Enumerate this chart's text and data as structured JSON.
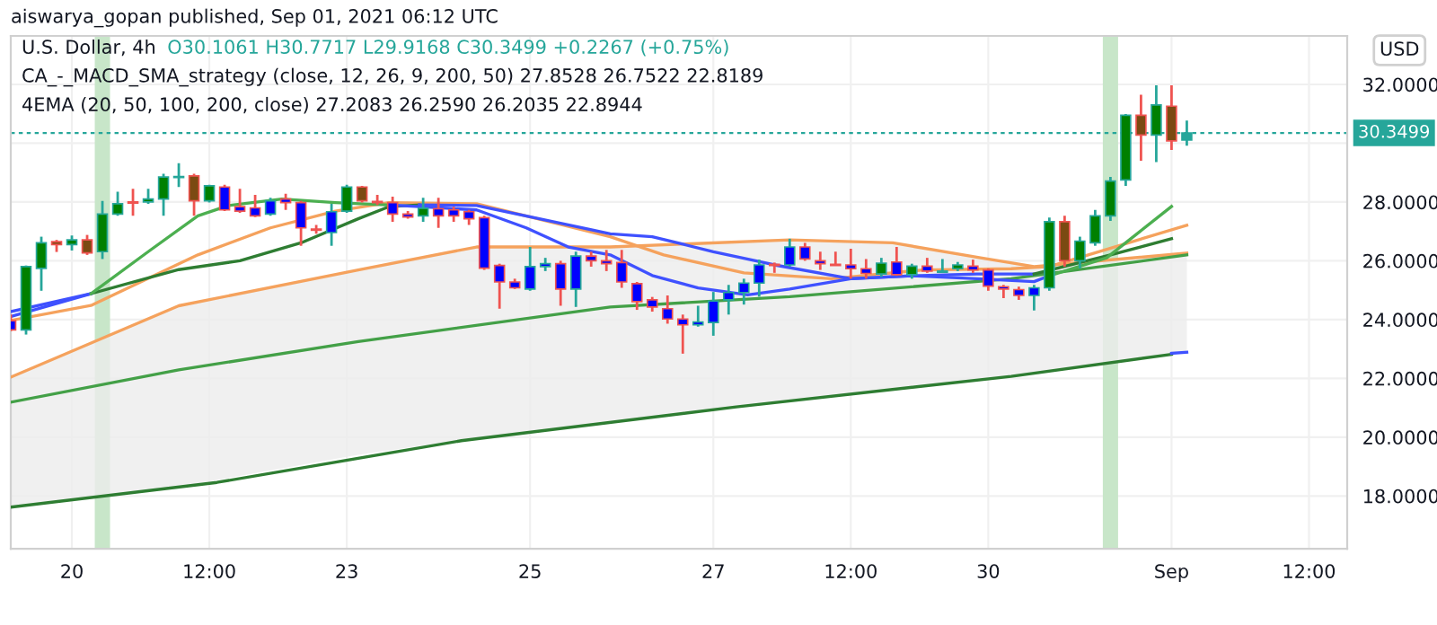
{
  "chart_data": {
    "type": "candlestick",
    "subtitle": "aiswarya_gopan published, Sep 01, 2021 06:12 UTC",
    "title": "U.S. Dollar, 4h",
    "annotations": [
      "O30.1061 H30.7717 L29.9168 C30.3499 +0.2267 (+0.75%)",
      "CA_-_MACD_SMA_strategy (close, 12, 26, 9, 200, 50) 27.8528 26.7522 22.8189",
      "4EMA (20, 50, 100, 200, close) 27.2083 26.2590 26.2035 22.8944"
    ],
    "ylabel": "USD",
    "x": [
      "2021-08-19T08:00",
      "2021-08-19T12:00",
      "2021-08-19T16:00",
      "2021-08-19T20:00",
      "2021-08-20T00:00",
      "2021-08-20T04:00",
      "2021-08-20T08:00",
      "2021-08-20T12:00",
      "2021-08-20T16:00",
      "2021-08-20T20:00",
      "2021-08-21T00:00",
      "2021-08-21T04:00",
      "2021-08-21T08:00",
      "2021-08-21T12:00",
      "2021-08-21T16:00",
      "2021-08-21T20:00",
      "2021-08-22T00:00",
      "2021-08-22T04:00",
      "2021-08-22T08:00",
      "2021-08-22T12:00",
      "2021-08-22T16:00",
      "2021-08-22T20:00",
      "2021-08-23T00:00",
      "2021-08-23T04:00",
      "2021-08-23T08:00",
      "2021-08-23T12:00",
      "2021-08-23T16:00",
      "2021-08-23T20:00",
      "2021-08-24T00:00",
      "2021-08-24T04:00",
      "2021-08-24T08:00",
      "2021-08-24T12:00",
      "2021-08-24T16:00",
      "2021-08-24T20:00",
      "2021-08-25T00:00",
      "2021-08-25T04:00",
      "2021-08-25T08:00",
      "2021-08-25T12:00",
      "2021-08-25T16:00",
      "2021-08-25T20:00",
      "2021-08-26T00:00",
      "2021-08-26T04:00",
      "2021-08-26T08:00",
      "2021-08-26T12:00",
      "2021-08-26T16:00",
      "2021-08-26T20:00",
      "2021-08-27T00:00",
      "2021-08-27T04:00",
      "2021-08-27T08:00",
      "2021-08-27T12:00",
      "2021-08-27T16:00",
      "2021-08-27T20:00",
      "2021-08-28T00:00",
      "2021-08-28T04:00",
      "2021-08-28T08:00",
      "2021-08-28T12:00",
      "2021-08-28T16:00",
      "2021-08-28T20:00",
      "2021-08-29T00:00",
      "2021-08-29T04:00",
      "2021-08-29T08:00",
      "2021-08-29T12:00",
      "2021-08-29T16:00",
      "2021-08-29T20:00",
      "2021-08-30T00:00",
      "2021-08-30T04:00",
      "2021-08-30T08:00",
      "2021-08-30T12:00",
      "2021-08-30T16:00",
      "2021-08-30T20:00",
      "2021-08-31T00:00",
      "2021-08-31T04:00",
      "2021-08-31T08:00",
      "2021-08-31T12:00",
      "2021-08-31T16:00",
      "2021-08-31T20:00",
      "2021-09-01T00:00",
      "2021-09-01T04:00"
    ],
    "ohlc": [
      [
        23.96,
        24.17,
        23.61,
        23.65
      ],
      [
        23.65,
        25.84,
        23.49,
        25.8
      ],
      [
        25.74,
        26.82,
        24.98,
        26.61
      ],
      [
        26.65,
        26.71,
        26.3,
        26.55
      ],
      [
        26.55,
        26.86,
        26.35,
        26.71
      ],
      [
        26.71,
        26.88,
        26.2,
        26.27
      ],
      [
        26.31,
        28.04,
        26.06,
        27.59
      ],
      [
        27.59,
        28.35,
        27.53,
        27.94
      ],
      [
        28.0,
        28.45,
        27.53,
        27.96
      ],
      [
        28.0,
        28.45,
        27.94,
        28.1
      ],
      [
        28.1,
        28.96,
        27.53,
        28.85
      ],
      [
        28.83,
        29.32,
        28.51,
        28.87
      ],
      [
        28.89,
        28.96,
        27.53,
        28.04
      ],
      [
        28.04,
        28.59,
        27.98,
        28.55
      ],
      [
        28.51,
        28.59,
        27.69,
        27.73
      ],
      [
        27.84,
        28.45,
        27.63,
        27.69
      ],
      [
        27.8,
        28.24,
        27.49,
        27.53
      ],
      [
        27.59,
        28.14,
        27.53,
        28.04
      ],
      [
        28.1,
        28.28,
        27.73,
        27.98
      ],
      [
        27.98,
        28.04,
        26.51,
        27.12
      ],
      [
        27.08,
        27.22,
        26.92,
        27.04
      ],
      [
        26.96,
        27.94,
        26.51,
        27.67
      ],
      [
        27.69,
        28.59,
        27.63,
        28.51
      ],
      [
        28.51,
        28.55,
        27.98,
        28.04
      ],
      [
        28.02,
        28.24,
        27.9,
        27.98
      ],
      [
        27.98,
        28.18,
        27.33,
        27.59
      ],
      [
        27.59,
        27.69,
        27.43,
        27.49
      ],
      [
        27.53,
        28.14,
        27.33,
        27.79
      ],
      [
        27.77,
        28.14,
        27.12,
        27.53
      ],
      [
        27.73,
        27.84,
        27.33,
        27.53
      ],
      [
        27.67,
        27.73,
        27.22,
        27.43
      ],
      [
        27.47,
        27.53,
        25.69,
        25.75
      ],
      [
        25.84,
        25.9,
        24.37,
        25.28
      ],
      [
        25.28,
        25.39,
        25.04,
        25.08
      ],
      [
        25.04,
        26.47,
        24.98,
        25.8
      ],
      [
        25.8,
        26.1,
        25.65,
        25.9
      ],
      [
        25.9,
        26.0,
        24.47,
        25.04
      ],
      [
        25.04,
        26.31,
        24.43,
        26.16
      ],
      [
        26.16,
        26.31,
        25.8,
        26.0
      ],
      [
        26.0,
        26.37,
        25.65,
        25.9
      ],
      [
        25.94,
        26.37,
        25.08,
        25.28
      ],
      [
        25.22,
        25.28,
        24.33,
        24.61
      ],
      [
        24.67,
        24.77,
        24.27,
        24.43
      ],
      [
        24.37,
        24.82,
        23.86,
        24.02
      ],
      [
        24.02,
        24.17,
        22.84,
        23.82
      ],
      [
        23.82,
        24.47,
        23.76,
        23.92
      ],
      [
        23.9,
        24.94,
        23.45,
        24.63
      ],
      [
        24.67,
        25.18,
        24.17,
        24.92
      ],
      [
        24.92,
        25.39,
        24.51,
        25.24
      ],
      [
        25.24,
        26.04,
        24.78,
        25.86
      ],
      [
        25.88,
        25.94,
        25.59,
        25.84
      ],
      [
        25.86,
        26.75,
        25.8,
        26.47
      ],
      [
        26.47,
        26.61,
        26.0,
        26.06
      ],
      [
        26.0,
        26.31,
        25.69,
        25.9
      ],
      [
        25.88,
        26.31,
        25.84,
        25.84
      ],
      [
        25.86,
        26.41,
        25.39,
        25.73
      ],
      [
        25.73,
        26.06,
        25.39,
        25.57
      ],
      [
        25.55,
        26.1,
        25.45,
        25.92
      ],
      [
        25.96,
        26.47,
        25.49,
        25.53
      ],
      [
        25.53,
        25.9,
        25.39,
        25.82
      ],
      [
        25.82,
        26.1,
        25.59,
        25.65
      ],
      [
        25.61,
        26.06,
        25.59,
        25.65
      ],
      [
        25.73,
        25.96,
        25.65,
        25.86
      ],
      [
        25.82,
        26.04,
        25.59,
        25.69
      ],
      [
        25.69,
        25.74,
        24.98,
        25.14
      ],
      [
        25.12,
        25.18,
        24.73,
        25.04
      ],
      [
        25.02,
        25.12,
        24.67,
        24.82
      ],
      [
        24.82,
        25.18,
        24.31,
        25.08
      ],
      [
        25.08,
        27.47,
        24.98,
        27.33
      ],
      [
        27.33,
        27.53,
        25.8,
        26.0
      ],
      [
        26.0,
        26.82,
        25.74,
        26.67
      ],
      [
        26.61,
        27.73,
        26.51,
        27.53
      ],
      [
        27.53,
        28.85,
        27.36,
        28.71
      ],
      [
        28.75,
        30.99,
        28.55,
        30.95
      ],
      [
        30.95,
        31.65,
        29.4,
        30.28
      ],
      [
        30.28,
        31.97,
        29.36,
        31.3
      ],
      [
        31.26,
        31.97,
        29.77,
        30.08
      ],
      [
        30.1061,
        30.7717,
        29.9168,
        30.3499
      ]
    ],
    "colors": [
      "#0000ff",
      "#008000",
      "#008000",
      "#7b4a12",
      "#008000",
      "#7b4a12",
      "#008000",
      "#008000",
      "#7b4a12",
      "#008000",
      "#008000",
      "#008000",
      "#7b4a12",
      "#008000",
      "#0000ff",
      "#0000ff",
      "#0000ff",
      "#0000ff",
      "#0000ff",
      "#0000ff",
      "#0000ff",
      "#0000ff",
      "#008000",
      "#7b4a12",
      "#7b4a12",
      "#0000ff",
      "#0000ff",
      "#008000",
      "#0000ff",
      "#0000ff",
      "#0000ff",
      "#0000ff",
      "#0000ff",
      "#0000ff",
      "#0000ff",
      "#0000ff",
      "#0000ff",
      "#0000ff",
      "#0000ff",
      "#0000ff",
      "#0000ff",
      "#0000ff",
      "#0000ff",
      "#0000ff",
      "#0000ff",
      "#0000ff",
      "#0000ff",
      "#0000ff",
      "#0000ff",
      "#0000ff",
      "#7b4a12",
      "#0000ff",
      "#0000ff",
      "#0000ff",
      "#0000ff",
      "#0000ff",
      "#0000ff",
      "#008000",
      "#0000ff",
      "#008000",
      "#0000ff",
      "#0000ff",
      "#008000",
      "#0000ff",
      "#0000ff",
      "#0000ff",
      "#0000ff",
      "#0000ff",
      "#008000",
      "#7b4a12",
      "#008000",
      "#008000",
      "#008000",
      "#008000",
      "#7b4a12",
      "#008000",
      "#7b4a12",
      "#26a69a"
    ],
    "series": [
      {
        "type": "line",
        "color": "#2e7d32",
        "x": [
          "2021-08-19T08:00",
          "2021-08-21T14:00",
          "2021-08-24T06:00",
          "2021-08-27T06:00",
          "2021-08-30T06:00",
          "2021-09-01T00:00"
        ],
        "values": [
          17.62,
          18.46,
          19.88,
          21.03,
          22.07,
          22.82
        ]
      },
      {
        "type": "line",
        "color": "#3f51ff",
        "x": [
          "2021-09-01T00:00",
          "2021-09-01T04:00"
        ],
        "values": [
          22.85,
          22.89
        ]
      },
      {
        "type": "line",
        "color": "#f5a25d",
        "x": [
          "2021-08-19T08:00",
          "2021-08-21T04:00",
          "2021-08-23T03:00",
          "2021-08-24T10:00",
          "2021-08-25T21:00",
          "2021-08-27T20:00",
          "2021-08-28T23:00",
          "2021-08-29T22:00",
          "2021-08-30T12:00",
          "2021-09-01T04:00"
        ],
        "values": [
          22.04,
          24.47,
          25.69,
          26.47,
          26.47,
          26.71,
          26.61,
          26.1,
          25.8,
          26.26
        ],
        "lower": [
          17.62,
          18.31,
          19.4,
          19.98,
          20.48,
          21.24,
          21.63,
          21.95,
          22.17,
          22.89
        ],
        "upper": [
          22.04,
          24.47,
          25.69,
          26.47,
          26.47,
          26.71,
          26.61,
          26.1,
          25.8,
          26.26
        ]
      },
      {
        "type": "line",
        "color": "#43a047",
        "x": [
          "2021-08-19T08:00",
          "2021-08-21T04:00",
          "2021-08-23T03:00",
          "2021-08-25T21:00",
          "2021-08-27T20:00",
          "2021-08-30T06:00",
          "2021-09-01T04:00"
        ],
        "values": [
          21.19,
          22.29,
          23.25,
          24.43,
          24.78,
          25.39,
          26.2
        ]
      },
      {
        "type": "line",
        "color": "#f5a25d",
        "x": [
          "2021-08-19T08:00",
          "2021-08-20T05:00",
          "2021-08-21T09:00",
          "2021-08-22T04:00",
          "2021-08-22T21:00",
          "2021-08-23T11:00",
          "2021-08-24T10:00",
          "2021-08-25T21:00",
          "2021-08-26T11:00",
          "2021-08-27T08:00",
          "2021-08-28T07:00",
          "2021-08-29T07:00",
          "2021-08-30T06:00",
          "2021-08-30T16:00",
          "2021-09-01T04:00"
        ],
        "values": [
          23.97,
          24.48,
          26.2,
          27.12,
          27.69,
          27.98,
          27.94,
          26.82,
          26.2,
          25.59,
          25.39,
          25.69,
          25.73,
          25.8,
          27.21
        ]
      },
      {
        "type": "line",
        "color": "#3f51ff",
        "x": [
          "2021-08-19T08:00",
          "2021-08-20T05:00"
        ],
        "values": [
          24.27,
          24.88
        ]
      },
      {
        "type": "line",
        "color": "#2e7d32",
        "x": [
          "2021-08-20T05:00",
          "2021-08-21T04:00",
          "2021-08-21T20:00",
          "2021-08-22T12:00",
          "2021-08-23T03:00",
          "2021-08-23T11:00",
          "2021-08-23T19:00"
        ],
        "values": [
          24.88,
          25.7,
          26.0,
          26.61,
          27.43,
          27.84,
          27.9
        ]
      },
      {
        "type": "line",
        "color": "#3f51ff",
        "x": [
          "2021-08-23T19:00",
          "2021-08-24T10:00",
          "2021-08-25T21:00",
          "2021-08-26T08:00",
          "2021-08-27T00:00",
          "2021-08-27T16:00",
          "2021-08-28T12:00",
          "2021-08-29T04:00",
          "2021-08-29T21:00",
          "2021-08-30T12:00"
        ],
        "values": [
          27.9,
          27.88,
          26.92,
          26.82,
          26.31,
          25.86,
          25.39,
          25.49,
          25.55,
          25.55
        ]
      },
      {
        "type": "line",
        "color": "#2e7d32",
        "x": [
          "2021-08-30T12:00",
          "2021-08-31T08:00",
          "2021-09-01T00:00"
        ],
        "values": [
          25.55,
          26.2,
          26.75
        ]
      },
      {
        "type": "line",
        "color": "#3f51ff",
        "x": [
          "2021-08-19T08:00",
          "2021-08-20T05:00"
        ],
        "values": [
          24.1,
          24.88
        ]
      },
      {
        "type": "line",
        "color": "#4caf50",
        "x": [
          "2021-08-20T05:00",
          "2021-08-20T20:00",
          "2021-08-21T09:00",
          "2021-08-21T17:00",
          "2021-08-22T07:00",
          "2021-08-22T21:00",
          "2021-08-23T11:00"
        ],
        "values": [
          24.88,
          26.31,
          27.53,
          27.88,
          28.1,
          27.98,
          27.9
        ]
      },
      {
        "type": "line",
        "color": "#3f51ff",
        "x": [
          "2021-08-23T11:00",
          "2021-08-23T19:00",
          "2021-08-24T10:00",
          "2021-08-24T23:00",
          "2021-08-25T10:00",
          "2021-08-25T21:00",
          "2021-08-26T08:00",
          "2021-08-26T20:00",
          "2021-08-27T09:00",
          "2021-08-27T20:00",
          "2021-08-28T12:00",
          "2021-08-29T04:00",
          "2021-08-29T21:00",
          "2021-08-30T12:00",
          "2021-08-30T16:00"
        ],
        "values": [
          27.9,
          27.84,
          27.73,
          27.12,
          26.47,
          26.2,
          25.5,
          25.08,
          24.84,
          25.04,
          25.39,
          25.49,
          25.39,
          25.29,
          25.49
        ]
      },
      {
        "type": "line",
        "color": "#4caf50",
        "x": [
          "2021-08-30T16:00",
          "2021-08-31T07:00",
          "2021-09-01T00:00"
        ],
        "values": [
          25.49,
          26.1,
          27.85
        ]
      }
    ],
    "bands": [
      {
        "axis": "x",
        "from": "2021-08-20T06:00",
        "to": "2021-08-20T10:00",
        "color": "#c8e6c9"
      },
      {
        "axis": "x",
        "from": "2021-08-31T06:00",
        "to": "2021-08-31T10:00",
        "color": "#c8e6c9"
      }
    ],
    "ref_lines": [
      {
        "axis": "y",
        "value": 30.3499,
        "label": "30.3499",
        "color": "#26a69a",
        "line_style": "dashed"
      }
    ],
    "xlim": [
      "2021-08-19T08:00",
      "2021-09-02T22:00"
    ],
    "ylim": [
      16.2,
      33.65
    ],
    "xticks": [
      {
        "value": "2021-08-20",
        "label": "20"
      },
      {
        "value": "2021-08-21T12:00",
        "label": "12:00"
      },
      {
        "value": "2021-08-23",
        "label": "23"
      },
      {
        "value": "2021-08-25",
        "label": "25"
      },
      {
        "value": "2021-08-27",
        "label": "27"
      },
      {
        "value": "2021-08-28T12:00",
        "label": "12:00"
      },
      {
        "value": "2021-08-30",
        "label": "30"
      },
      {
        "value": "2021-09-01",
        "label": "Sep"
      },
      {
        "value": "2021-09-02T12:00",
        "label": "12:00"
      }
    ],
    "yticks": [
      {
        "value": 18,
        "label": "18.0000"
      },
      {
        "value": 20,
        "label": "20.0000"
      },
      {
        "value": 22,
        "label": "22.0000"
      },
      {
        "value": 24,
        "label": "24.0000"
      },
      {
        "value": 26,
        "label": "26.0000"
      },
      {
        "value": 28,
        "label": "28.0000"
      },
      {
        "value": 30,
        "label": null
      },
      {
        "value": 32,
        "label": "32.0000"
      }
    ],
    "grid": true
  }
}
